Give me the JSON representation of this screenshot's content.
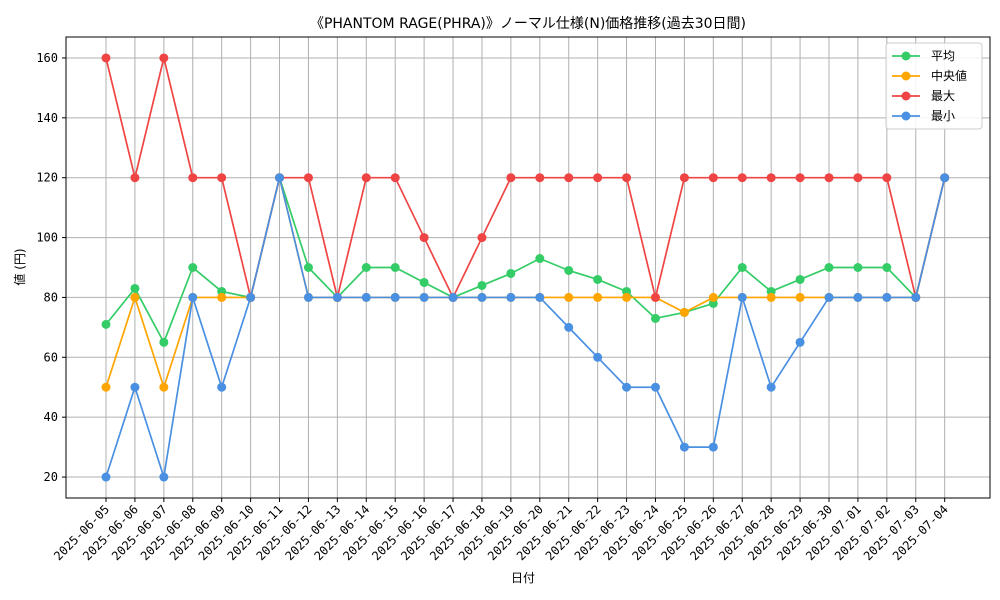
{
  "chart_data": {
    "type": "line",
    "title": "《PHANTOM RAGE(PHRA)》ノーマル仕様(N)価格推移(過去30日間)",
    "xlabel": "日付",
    "ylabel": "値 (円)",
    "ylim": [
      13,
      167
    ],
    "yticks": [
      20,
      40,
      60,
      80,
      100,
      120,
      140,
      160
    ],
    "grid": true,
    "legend_position": "top-right",
    "categories": [
      "2025-06-05",
      "2025-06-06",
      "2025-06-07",
      "2025-06-08",
      "2025-06-09",
      "2025-06-10",
      "2025-06-11",
      "2025-06-12",
      "2025-06-13",
      "2025-06-14",
      "2025-06-15",
      "2025-06-16",
      "2025-06-17",
      "2025-06-18",
      "2025-06-19",
      "2025-06-20",
      "2025-06-21",
      "2025-06-22",
      "2025-06-23",
      "2025-06-24",
      "2025-06-25",
      "2025-06-26",
      "2025-06-27",
      "2025-06-28",
      "2025-06-29",
      "2025-06-30",
      "2025-07-01",
      "2025-07-02",
      "2025-07-03",
      "2025-07-04"
    ],
    "series": [
      {
        "name": "平均",
        "color": "#33cc66",
        "values": [
          71,
          83,
          65,
          90,
          82,
          80,
          120,
          90,
          80,
          90,
          90,
          85,
          80,
          84,
          88,
          93,
          89,
          86,
          82,
          73,
          75,
          78,
          90,
          82,
          86,
          90,
          90,
          90,
          80,
          120
        ]
      },
      {
        "name": "中央値",
        "color": "#ffa500",
        "values": [
          50,
          80,
          50,
          80,
          80,
          80,
          120,
          80,
          80,
          80,
          80,
          80,
          80,
          80,
          80,
          80,
          80,
          80,
          80,
          80,
          75,
          80,
          80,
          80,
          80,
          80,
          80,
          80,
          80,
          120
        ]
      },
      {
        "name": "最大",
        "color": "#ef4444",
        "values": [
          160,
          120,
          160,
          120,
          120,
          80,
          120,
          120,
          80,
          120,
          120,
          100,
          80,
          100,
          120,
          120,
          120,
          120,
          120,
          80,
          120,
          120,
          120,
          120,
          120,
          120,
          120,
          120,
          80,
          120
        ]
      },
      {
        "name": "最小",
        "color": "#4a90e2",
        "values": [
          20,
          50,
          20,
          80,
          50,
          80,
          120,
          80,
          80,
          80,
          80,
          80,
          80,
          80,
          80,
          80,
          70,
          60,
          50,
          50,
          30,
          30,
          80,
          50,
          65,
          80,
          80,
          80,
          80,
          120
        ]
      }
    ]
  }
}
